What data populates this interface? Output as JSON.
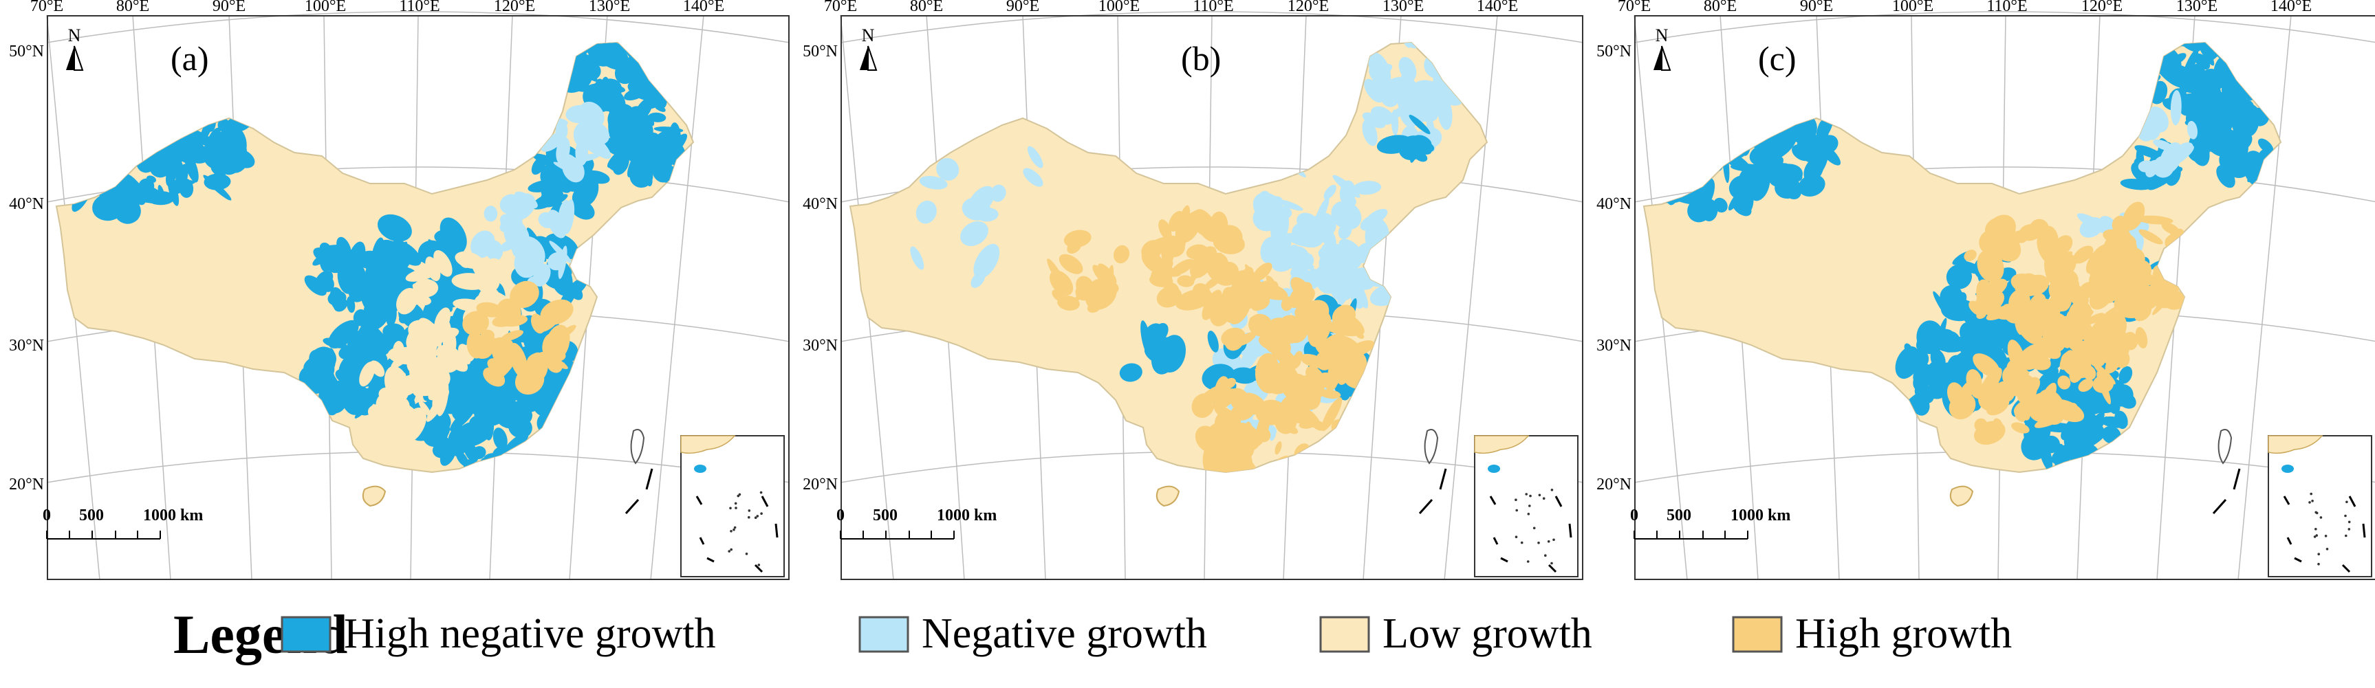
{
  "panels": [
    {
      "label": "(a)",
      "variant": "a"
    },
    {
      "label": "(b)",
      "variant": "b"
    },
    {
      "label": "(c)",
      "variant": "c"
    }
  ],
  "axes": {
    "lon_labels": [
      "70°E",
      "80°E",
      "90°E",
      "100°E",
      "110°E",
      "120°E",
      "130°E",
      "140°E"
    ],
    "lat_labels": [
      "50°N",
      "40°N",
      "30°N",
      "20°N"
    ]
  },
  "north_arrow": "N",
  "scale_bar": {
    "ticks": [
      "0",
      "500",
      "1000 km"
    ]
  },
  "legend": {
    "title": "Legend",
    "items": [
      {
        "label": "High negative growth",
        "color": "#1ea8e0"
      },
      {
        "label": "Negative growth",
        "color": "#b8e6f8"
      },
      {
        "label": "Low growth",
        "color": "#fbe8bd"
      },
      {
        "label": "High growth",
        "color": "#f8cf7c"
      }
    ]
  }
}
